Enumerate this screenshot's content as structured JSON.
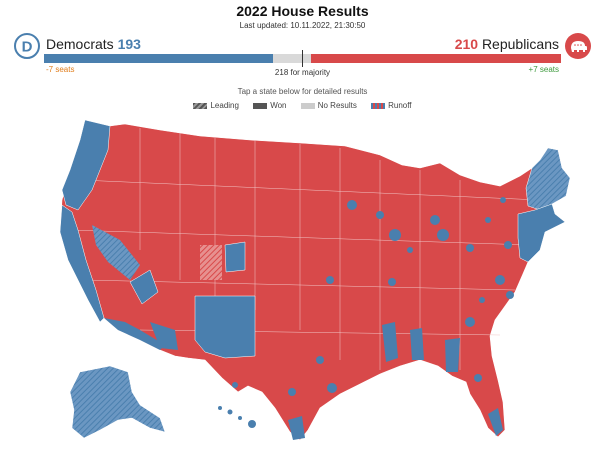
{
  "header": {
    "title": "2022 House Results",
    "last_updated": "Last updated: 10.11.2022, 21:30:50"
  },
  "democrats": {
    "name": "Democrats",
    "seats": "193",
    "change": "-7 seats",
    "color": "#4a7fae",
    "icon": "democrat-d-logo"
  },
  "republicans": {
    "name": "Republicans",
    "seats": "210",
    "change": "+7 seats",
    "color": "#d8494a",
    "icon": "republican-elephant-logo"
  },
  "majority": {
    "label": "218 for majority",
    "total_seats": 435,
    "threshold": 218
  },
  "instructions": "Tap a state below for detailed results",
  "legend": [
    {
      "label": "Leading",
      "swatch": "hatched"
    },
    {
      "label": "Won",
      "swatch": "solid"
    },
    {
      "label": "No Results",
      "swatch": "gray"
    },
    {
      "label": "Runoff",
      "swatch": "striped"
    }
  ],
  "colors": {
    "dem": "#4a7fae",
    "rep": "#d8494a",
    "no_results": "#d9d9d9",
    "dark": "#555555"
  }
}
